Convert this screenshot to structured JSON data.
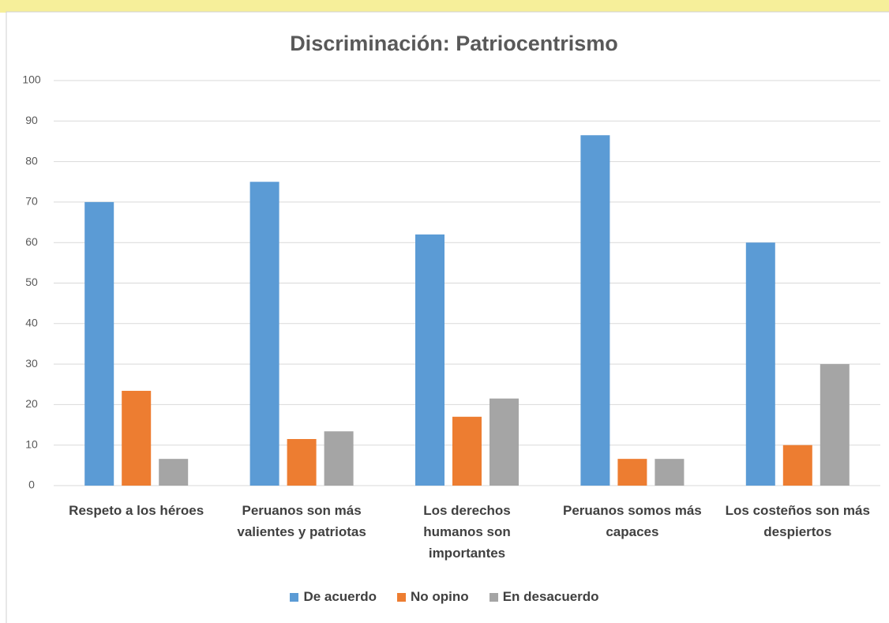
{
  "chart_data": {
    "type": "bar",
    "title": "Discriminación: Patriocentrismo",
    "categories": [
      "Respeto a los héroes",
      "Peruanos son más valientes y patriotas",
      "Los derechos humanos son importantes",
      "Peruanos somos más capaces",
      "Los costeños son más despiertos"
    ],
    "series": [
      {
        "name": "De acuerdo",
        "color": "#5b9bd5",
        "values": [
          70,
          75,
          62,
          86.5,
          60
        ]
      },
      {
        "name": "No opino",
        "color": "#ed7d31",
        "values": [
          23.4,
          11.5,
          17,
          6.6,
          10
        ]
      },
      {
        "name": "En desacuerdo",
        "color": "#a5a5a5",
        "values": [
          6.6,
          13.4,
          21.5,
          6.6,
          30
        ]
      }
    ],
    "ylim": [
      0,
      100
    ],
    "yticks": [
      0,
      10,
      20,
      30,
      40,
      50,
      60,
      70,
      80,
      90,
      100
    ],
    "grid": true,
    "legend": "bottom"
  }
}
